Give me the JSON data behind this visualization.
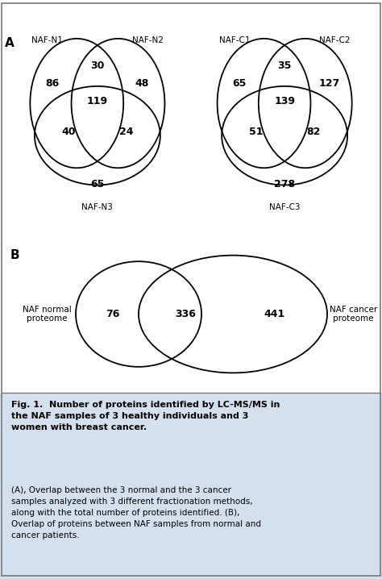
{
  "panel_A_left": {
    "values": {
      "only_N1": "86",
      "only_N2": "48",
      "only_N3": "65",
      "N1_N2": "30",
      "N1_N3": "40",
      "N2_N3": "24",
      "all_three": "119"
    },
    "label_N1": "NAF-N1",
    "label_N2": "NAF-N2",
    "label_N3": "NAF-N3"
  },
  "panel_A_right": {
    "values": {
      "only_C1": "65",
      "only_C2": "127",
      "only_C3": "278",
      "C1_C2": "35",
      "C1_C3": "51",
      "C2_C3": "82",
      "all_three": "139"
    },
    "label_C1": "NAF-C1",
    "label_C2": "NAF-C2",
    "label_C3": "NAF-C3"
  },
  "panel_B": {
    "label_left": "NAF normal\nproteome",
    "label_right": "NAF cancer\nproteome",
    "only_left": "76",
    "intersection": "336",
    "only_right": "441"
  },
  "panel_A_label": "A",
  "panel_B_label": "B",
  "caption_title_bold": "Fig. 1.",
  "caption_title_normal": "  Number of proteins identified by LC-MS/MS in\nthe NAF samples of 3 healthy individuals and 3\nwomen with breast cancer.",
  "caption_body": "(A), Overlap between the 3 normal and the 3 cancer\nsamples analyzed with 3 different fractionation methods,\nalong with the total number of proteins identified. (B),\nOverlap of proteins between NAF samples from normal and\ncancer patients.",
  "bg_color": "#ffffff",
  "caption_bg": "#d5e0ee",
  "ellipse_color": "#000000",
  "fontsize_numbers": 9,
  "fontsize_labels": 7.5,
  "fontsize_panel_label": 11,
  "fontsize_caption_title": 8,
  "fontsize_caption_body": 7.5
}
